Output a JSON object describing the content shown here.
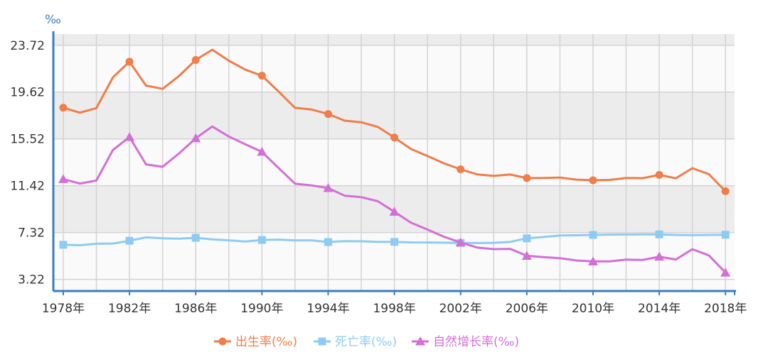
{
  "chart_data": {
    "type": "line",
    "y_unit": "‰",
    "y_ticks": [
      "3.22",
      "7.32",
      "11.42",
      "15.52",
      "19.62",
      "23.72"
    ],
    "ylim": [
      2.2,
      24.7
    ],
    "x_ticks": [
      "1978年",
      "1982年",
      "1986年",
      "1990年",
      "1994年",
      "1998年",
      "2002年",
      "2006年",
      "2010年",
      "2014年",
      "2018年"
    ],
    "x": [
      1978,
      1979,
      1980,
      1981,
      1982,
      1983,
      1984,
      1985,
      1986,
      1987,
      1988,
      1989,
      1990,
      1991,
      1992,
      1993,
      1994,
      1995,
      1996,
      1997,
      1998,
      1999,
      2000,
      2001,
      2002,
      2003,
      2004,
      2005,
      2006,
      2007,
      2008,
      2009,
      2010,
      2011,
      2012,
      2013,
      2014,
      2015,
      2016,
      2017,
      2018
    ],
    "grid": true,
    "legend_position": "bottom",
    "series": [
      {
        "name": "出生率(‰)",
        "color": "#f07d4a",
        "marker": "circle",
        "marker_years": [
          1978,
          1982,
          1986,
          1990,
          1994,
          1998,
          2002,
          2006,
          2010,
          2014,
          2018
        ],
        "values": [
          18.25,
          17.82,
          18.21,
          20.91,
          22.28,
          20.19,
          19.9,
          21.04,
          22.43,
          23.33,
          22.37,
          21.58,
          21.06,
          19.68,
          18.24,
          18.09,
          17.7,
          17.12,
          16.98,
          16.57,
          15.64,
          14.64,
          14.03,
          13.38,
          12.86,
          12.41,
          12.29,
          12.4,
          12.09,
          12.1,
          12.14,
          11.95,
          11.9,
          11.93,
          12.1,
          12.08,
          12.37,
          12.07,
          12.95,
          12.43,
          10.94
        ]
      },
      {
        "name": "死亡率(‰)",
        "color": "#8ecbf2",
        "marker": "square",
        "marker_years": [
          1978,
          1982,
          1986,
          1990,
          1994,
          1998,
          2002,
          2006,
          2010,
          2014,
          2018
        ],
        "values": [
          6.25,
          6.21,
          6.34,
          6.36,
          6.6,
          6.9,
          6.82,
          6.78,
          6.86,
          6.72,
          6.64,
          6.54,
          6.67,
          6.7,
          6.64,
          6.64,
          6.49,
          6.57,
          6.56,
          6.51,
          6.5,
          6.46,
          6.45,
          6.43,
          6.41,
          6.4,
          6.42,
          6.51,
          6.81,
          6.93,
          7.06,
          7.08,
          7.11,
          7.14,
          7.15,
          7.16,
          7.16,
          7.11,
          7.09,
          7.11,
          7.13
        ]
      },
      {
        "name": "自然增长率(‰)",
        "color": "#d36fd6",
        "marker": "triangle",
        "marker_years": [
          1978,
          1982,
          1986,
          1990,
          1994,
          1998,
          2002,
          2006,
          2010,
          2014,
          2018
        ],
        "values": [
          12.0,
          11.61,
          11.87,
          14.55,
          15.68,
          13.29,
          13.08,
          14.26,
          15.57,
          16.61,
          15.73,
          15.04,
          14.39,
          12.98,
          11.6,
          11.45,
          11.21,
          10.55,
          10.42,
          10.06,
          9.14,
          8.18,
          7.58,
          6.95,
          6.45,
          6.01,
          5.87,
          5.89,
          5.28,
          5.17,
          5.08,
          4.87,
          4.79,
          4.79,
          4.95,
          4.92,
          5.21,
          4.96,
          5.86,
          5.32,
          3.81
        ]
      }
    ]
  }
}
